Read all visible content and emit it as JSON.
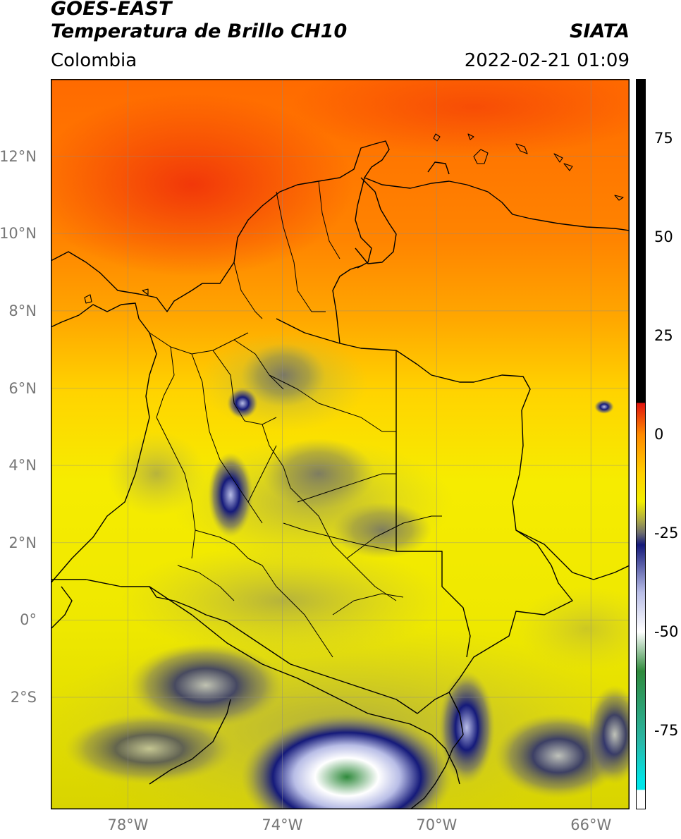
{
  "header": {
    "title_line1": "GOES-EAST",
    "title_line2": "Temperatura de Brillo CH10",
    "brand": "SIATA",
    "region": "Colombia",
    "datetime": "2022-02-21 01:09"
  },
  "map": {
    "extent": {
      "lon_min": -80.0,
      "lon_max": -65.0,
      "lat_min": -4.9,
      "lat_max": 14.0
    },
    "lat_ticks": [
      {
        "value": 12,
        "label": "12°N"
      },
      {
        "value": 10,
        "label": "10°N"
      },
      {
        "value": 8,
        "label": "8°N"
      },
      {
        "value": 6,
        "label": "6°N"
      },
      {
        "value": 4,
        "label": "4°N"
      },
      {
        "value": 2,
        "label": "2°N"
      },
      {
        "value": 0,
        "label": "0°"
      },
      {
        "value": -2,
        "label": "2°S"
      }
    ],
    "lon_ticks": [
      {
        "value": -78,
        "label": "78°W"
      },
      {
        "value": -74,
        "label": "74°W"
      },
      {
        "value": -70,
        "label": "70°W"
      },
      {
        "value": -66,
        "label": "66°W"
      }
    ],
    "gridlines": true
  },
  "colorbar": {
    "min": -95,
    "max": 90,
    "ticks": [
      {
        "value": 75,
        "label": "75"
      },
      {
        "value": 50,
        "label": "50"
      },
      {
        "value": 25,
        "label": "25"
      },
      {
        "value": 0,
        "label": "0"
      },
      {
        "value": -25,
        "label": "-25"
      },
      {
        "value": -50,
        "label": "-50"
      },
      {
        "value": -75,
        "label": "-75"
      }
    ],
    "colors": {
      "hot": "#e0140f",
      "warm": "#ff8a00",
      "mild": "#ffd000",
      "cool": "#f2ee00",
      "olive": "#a7a54a",
      "gray": "#6d6d6d",
      "navy": "#151a7a",
      "lavender": "#b8bde6",
      "white": "#ffffff",
      "green": "#2f8a3c",
      "teal": "#2ab8a8",
      "cyan": "#00e5e8",
      "black": "#000000"
    }
  }
}
